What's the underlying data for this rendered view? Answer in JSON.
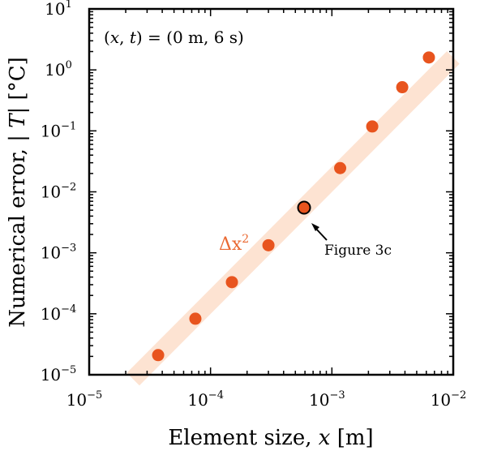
{
  "chart_data": {
    "type": "scatter",
    "x_scale": "log",
    "y_scale": "log",
    "xlim": [
      1e-05,
      0.01
    ],
    "ylim": [
      1e-05,
      10
    ],
    "xlabel_parts": [
      "Element size,  ",
      "x",
      " [m]"
    ],
    "ylabel_parts": [
      "Numerical error, | ",
      "T",
      "| [°C]"
    ],
    "x_ticks": [
      {
        "base": "10",
        "exp": "−5",
        "value": 1e-05
      },
      {
        "base": "10",
        "exp": "−4",
        "value": 0.0001
      },
      {
        "base": "10",
        "exp": "−3",
        "value": 0.001
      },
      {
        "base": "10",
        "exp": "−2",
        "value": 0.01
      }
    ],
    "y_ticks": [
      {
        "base": "10",
        "exp": "−5",
        "value": 1e-05
      },
      {
        "base": "10",
        "exp": "−4",
        "value": 0.0001
      },
      {
        "base": "10",
        "exp": "−3",
        "value": 0.001
      },
      {
        "base": "10",
        "exp": "−2",
        "value": 0.01
      },
      {
        "base": "10",
        "exp": "−1",
        "value": 0.1
      },
      {
        "base": "10",
        "exp": "0",
        "value": 1
      },
      {
        "base": "10",
        "exp": "1",
        "value": 10
      }
    ],
    "series": [
      {
        "points": [
          {
            "x": 3.7e-05,
            "y": 2.1e-05
          },
          {
            "x": 7.5e-05,
            "y": 8.3e-05
          },
          {
            "x": 0.00015,
            "y": 0.00033
          },
          {
            "x": 0.0003,
            "y": 0.00133
          },
          {
            "x": 0.00059,
            "y": 0.0055,
            "highlight": true
          },
          {
            "x": 0.00117,
            "y": 0.0245
          },
          {
            "x": 0.00215,
            "y": 0.118
          },
          {
            "x": 0.0038,
            "y": 0.52
          },
          {
            "x": 0.0063,
            "y": 1.6
          }
        ]
      }
    ],
    "fit_line": {
      "label_base": "Δx",
      "label_exp": "2",
      "x_range": [
        2.3e-05,
        0.01
      ],
      "coef": 16000,
      "power": 2
    },
    "annotation_parts": [
      "(",
      "x",
      ", ",
      "t",
      ") = (0 m, 6 s)"
    ],
    "callout": "Figure 3c",
    "grid": false,
    "colors": {
      "marker": "#e8541e",
      "fit": "#fde3d2",
      "fit_label": "#ea6a33",
      "axes": "#000000"
    }
  }
}
